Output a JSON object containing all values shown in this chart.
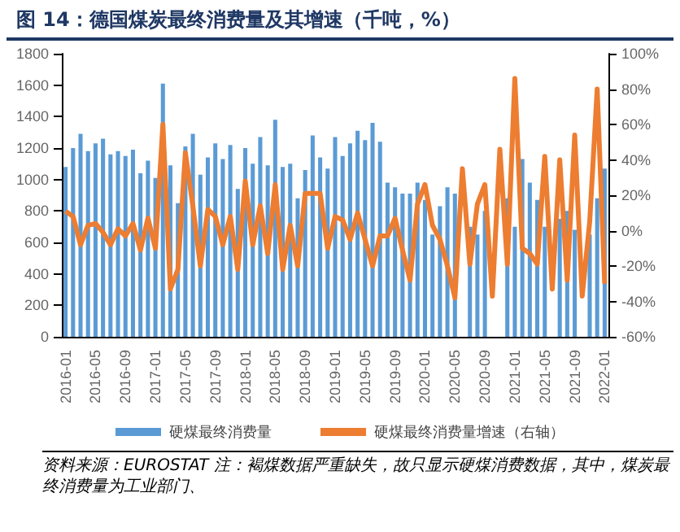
{
  "chart_data": {
    "type": "bar",
    "title": "图 14：德国煤炭最终消费量及其增速（千吨，%）",
    "categories": [
      "2016-01",
      null,
      null,
      null,
      "2016-05",
      null,
      null,
      null,
      "2016-09",
      null,
      null,
      null,
      "2017-01",
      null,
      null,
      null,
      "2017-05",
      null,
      null,
      null,
      "2017-09",
      null,
      null,
      null,
      "2018-01",
      null,
      null,
      null,
      "2018-05",
      null,
      null,
      null,
      "2018-09",
      null,
      null,
      null,
      "2019-01",
      null,
      null,
      null,
      "2019-05",
      null,
      null,
      null,
      "2019-09",
      null,
      null,
      null,
      "2020-01",
      null,
      null,
      null,
      "2020-05",
      null,
      null,
      null,
      "2020-09",
      null,
      null,
      null,
      "2021-01",
      null,
      null,
      null,
      "2021-05",
      null,
      null,
      null,
      "2021-09",
      null,
      null,
      null,
      "2022-01"
    ],
    "series": [
      {
        "name": "硬煤最终消费量",
        "color": "#5b9bd5",
        "values": [
          1080,
          1200,
          1290,
          1180,
          1230,
          1260,
          1160,
          1180,
          1150,
          1190,
          1040,
          1120,
          1010,
          1610,
          1090,
          850,
          1210,
          1290,
          1030,
          1140,
          1230,
          1130,
          1220,
          940,
          1200,
          1100,
          1270,
          1090,
          1380,
          1080,
          1100,
          880,
          1060,
          1280,
          1140,
          1070,
          1270,
          1150,
          1230,
          1310,
          1250,
          1360,
          1240,
          980,
          950,
          910,
          910,
          980,
          870,
          650,
          830,
          950,
          910,
          null,
          700,
          650,
          800,
          null,
          null,
          880,
          700,
          1130,
          980,
          870,
          700,
          null,
          750,
          800,
          680,
          null,
          650,
          880,
          1070
        ]
      },
      {
        "name": "硬煤最终消费量增速（右轴）",
        "type": "line",
        "axis": "y2",
        "color": "#ed7d31",
        "values": [
          11,
          8,
          -8,
          3,
          4,
          -1,
          -8,
          1,
          -3,
          4,
          -11,
          7,
          -10,
          60,
          -33,
          -22,
          44,
          14,
          -20,
          12,
          8,
          -8,
          8,
          -22,
          28,
          -8,
          14,
          -13,
          26,
          -22,
          3,
          -20,
          21,
          21,
          21,
          -10,
          8,
          6,
          -5,
          10,
          -5,
          -20,
          -3,
          -3,
          7,
          -11,
          -28,
          15,
          26,
          3,
          -5,
          -20,
          -38,
          35,
          -19,
          15,
          26,
          -37,
          46,
          -19,
          86,
          -10,
          -13,
          -19,
          42,
          -33,
          40,
          -28,
          54,
          -37,
          5,
          80,
          -30
        ]
      }
    ],
    "ylim": [
      0,
      1800
    ],
    "yticks": [
      0,
      200,
      400,
      600,
      800,
      1000,
      1200,
      1400,
      1600,
      1800
    ],
    "y2lim": [
      -60,
      100
    ],
    "y2ticks": [
      {
        "value": -60,
        "label": "-60%"
      },
      {
        "value": -40,
        "label": "-40%"
      },
      {
        "value": -20,
        "label": "-20%"
      },
      {
        "value": 0,
        "label": "0%"
      },
      {
        "value": 20,
        "label": "20%"
      },
      {
        "value": 40,
        "label": "40%"
      },
      {
        "value": 60,
        "label": "60%"
      },
      {
        "value": 80,
        "label": "80%"
      },
      {
        "value": 100,
        "label": "100%"
      }
    ],
    "grid": false,
    "legend": "bottom",
    "marker": "none",
    "line_style": "solid",
    "annotations": [
      "资料来源：EUROSTAT 注：褐煤数据严重缺失，故只显示硬煤消费数据，其中，煤炭最终消费量为工业部门、"
    ]
  }
}
